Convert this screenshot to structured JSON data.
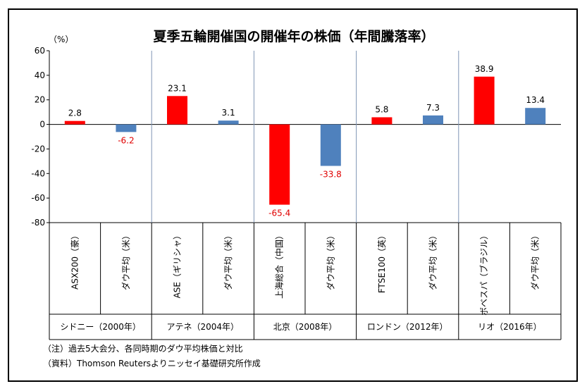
{
  "chart_data": {
    "type": "bar",
    "title": "夏季五輪開催国の開催年の株価（年間騰落率）",
    "ylabel": "（%）",
    "ylim": [
      -80,
      60
    ],
    "yticks": [
      60,
      40,
      20,
      0,
      -20,
      -40,
      -60,
      -80
    ],
    "categories": [
      "ASX200（豪）",
      "ダウ平均（米）",
      "ASE（ギリシャ）",
      "ダウ平均（米）",
      "上海総合（中国）",
      "ダウ平均（米）",
      "FTSE100（英）",
      "ダウ平均（米）",
      "ボベスパ（ブラジル）",
      "ダウ平均（米）"
    ],
    "values": [
      2.8,
      -6.2,
      23.1,
      3.1,
      -65.4,
      -33.8,
      5.8,
      7.3,
      38.9,
      13.4
    ],
    "value_labels": [
      "2.8",
      "-6.2",
      "23.1",
      "3.1",
      "-65.4",
      "-33.8",
      "5.8",
      "7.3",
      "38.9",
      "13.4"
    ],
    "groups": [
      "シドニー（2000年）",
      "アテネ（2004年）",
      "北京（2008年）",
      "ロンドン（2012年）",
      "リオ（2016年）"
    ],
    "bar_colors": [
      "#ff0000",
      "#4f81bd",
      "#ff0000",
      "#4f81bd",
      "#ff0000",
      "#4f81bd",
      "#ff0000",
      "#4f81bd",
      "#ff0000",
      "#4f81bd"
    ],
    "negative_label_color": "#e00000",
    "grid": false,
    "legend": "none"
  },
  "notes": {
    "note1": "（注）過去5大会分、各同時期のダウ平均株価と対比",
    "note2": "（資料）Thomson Reutersよりニッセイ基礎研究所作成"
  }
}
